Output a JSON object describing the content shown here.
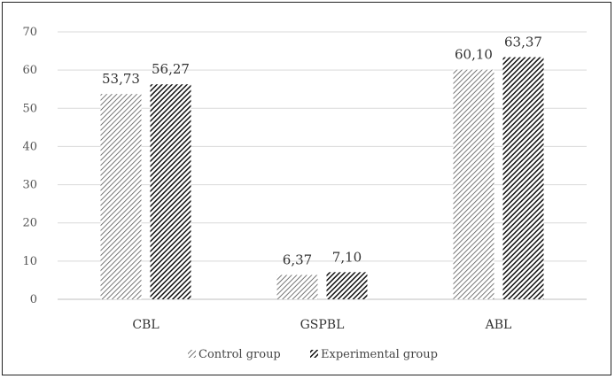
{
  "chart_data": {
    "type": "bar",
    "categories": [
      "CBL",
      "GSPBL",
      "ABL"
    ],
    "series": [
      {
        "name": "Control group",
        "values": [
          53.73,
          6.37,
          60.1
        ],
        "labels": [
          "53,73",
          "6,37",
          "60,10"
        ],
        "color": "#555555"
      },
      {
        "name": "Experimental group",
        "values": [
          56.27,
          7.1,
          63.37
        ],
        "labels": [
          "56,27",
          "7,10",
          "63,37"
        ],
        "color": "#111111"
      }
    ],
    "ylim": [
      0,
      70
    ],
    "yticks": [
      {
        "value": 0,
        "label": "0"
      },
      {
        "value": 10,
        "label": "10"
      },
      {
        "value": 20,
        "label": "20"
      },
      {
        "value": 30,
        "label": "30"
      },
      {
        "value": 40,
        "label": "40"
      },
      {
        "value": 50,
        "label": "50"
      },
      {
        "value": 60,
        "label": "60"
      },
      {
        "value": 70,
        "label": "70"
      }
    ],
    "grid": true,
    "legend_position": "bottom"
  }
}
